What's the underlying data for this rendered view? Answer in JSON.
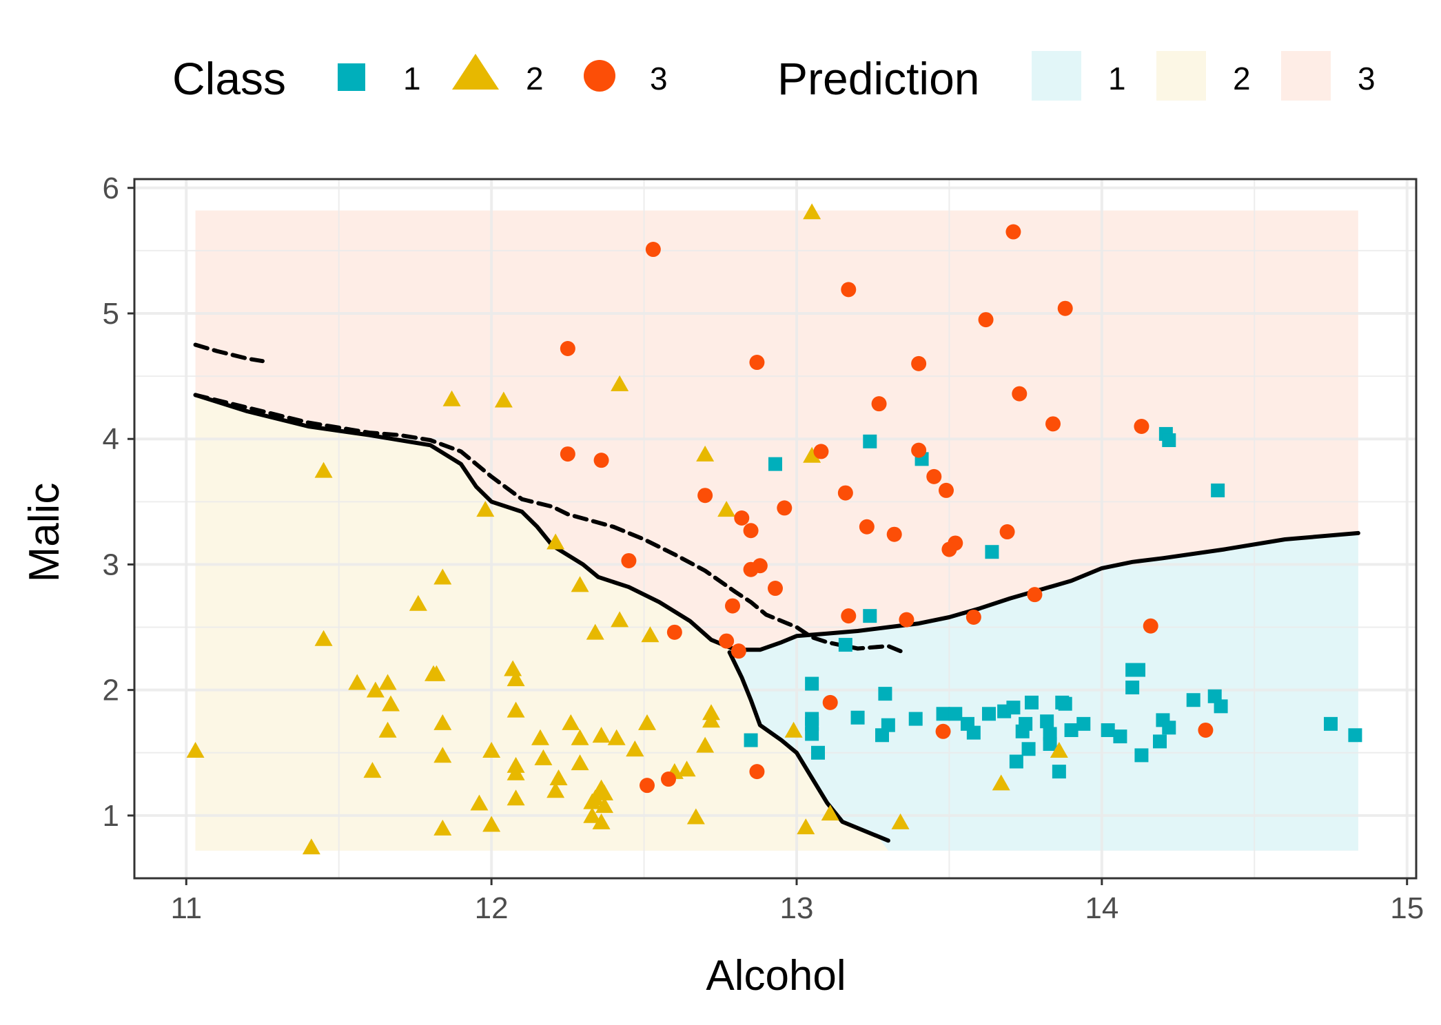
{
  "chart_data": {
    "type": "scatter",
    "xlabel": "Alcohol",
    "ylabel": "Malic",
    "xlim": [
      10.83,
      15.03
    ],
    "ylim": [
      0.5,
      6.07
    ],
    "x_ticks": [
      11,
      12,
      13,
      14,
      15
    ],
    "y_ticks": [
      1,
      2,
      3,
      4,
      5,
      6
    ],
    "x_tick_labels": [
      "11",
      "12",
      "13",
      "14",
      "15"
    ],
    "y_tick_labels": [
      "1",
      "2",
      "3",
      "4",
      "5",
      "6"
    ],
    "grid": true,
    "legend_position": "top",
    "legends": [
      {
        "title": "Class",
        "entries": [
          {
            "label": "1",
            "shape": "square",
            "color": "#00AFBB"
          },
          {
            "label": "2",
            "shape": "triangle",
            "color": "#E7B800"
          },
          {
            "label": "3",
            "shape": "circle",
            "color": "#FC4E07"
          }
        ]
      },
      {
        "title": "Prediction",
        "entries": [
          {
            "label": "1",
            "color": "#e2f6f8"
          },
          {
            "label": "2",
            "color": "#fcf7e5"
          },
          {
            "label": "3",
            "color": "#feede6"
          }
        ]
      }
    ],
    "prediction_region": {
      "x": [
        11.03,
        14.84
      ],
      "y": [
        0.72,
        5.82
      ]
    },
    "boundary_13": [
      [
        11.03,
        4.75
      ],
      [
        11.1,
        4.7
      ],
      [
        11.2,
        4.64
      ],
      [
        11.25,
        4.62
      ]
    ],
    "boundary_23": [
      [
        11.03,
        4.35
      ],
      [
        11.2,
        4.25
      ],
      [
        11.4,
        4.13
      ],
      [
        11.6,
        4.05
      ],
      [
        11.7,
        4.03
      ],
      [
        11.8,
        3.99
      ],
      [
        11.9,
        3.9
      ],
      [
        12.0,
        3.7
      ],
      [
        12.1,
        3.52
      ],
      [
        12.2,
        3.46
      ],
      [
        12.25,
        3.4
      ],
      [
        12.4,
        3.3
      ],
      [
        12.5,
        3.2
      ],
      [
        12.6,
        3.08
      ],
      [
        12.7,
        2.95
      ],
      [
        12.8,
        2.78
      ],
      [
        12.85,
        2.7
      ],
      [
        12.9,
        2.6
      ],
      [
        13.0,
        2.5
      ],
      [
        13.05,
        2.42
      ],
      [
        13.1,
        2.38
      ],
      [
        13.2,
        2.33
      ],
      [
        13.3,
        2.35
      ],
      [
        13.35,
        2.3
      ]
    ],
    "boundary_main": [
      [
        11.03,
        4.35
      ],
      [
        11.2,
        4.22
      ],
      [
        11.4,
        4.1
      ],
      [
        11.6,
        4.03
      ],
      [
        11.8,
        3.95
      ],
      [
        11.9,
        3.8
      ],
      [
        11.95,
        3.62
      ],
      [
        12.0,
        3.5
      ],
      [
        12.1,
        3.42
      ],
      [
        12.15,
        3.3
      ],
      [
        12.2,
        3.15
      ],
      [
        12.3,
        3.0
      ],
      [
        12.35,
        2.9
      ],
      [
        12.45,
        2.82
      ],
      [
        12.55,
        2.7
      ],
      [
        12.65,
        2.55
      ],
      [
        12.72,
        2.4
      ],
      [
        12.8,
        2.32
      ],
      [
        12.88,
        2.32
      ],
      [
        12.95,
        2.38
      ],
      [
        13.0,
        2.43
      ],
      [
        13.1,
        2.45
      ],
      [
        13.2,
        2.47
      ],
      [
        13.3,
        2.5
      ],
      [
        13.4,
        2.53
      ],
      [
        13.5,
        2.58
      ],
      [
        13.6,
        2.65
      ],
      [
        13.7,
        2.73
      ],
      [
        13.8,
        2.8
      ],
      [
        13.9,
        2.87
      ],
      [
        14.0,
        2.97
      ],
      [
        14.1,
        3.02
      ],
      [
        14.2,
        3.05
      ],
      [
        14.4,
        3.12
      ],
      [
        14.6,
        3.2
      ],
      [
        14.84,
        3.25
      ]
    ],
    "boundary_12": [
      [
        12.78,
        2.3
      ],
      [
        12.82,
        2.1
      ],
      [
        12.85,
        1.92
      ],
      [
        12.88,
        1.72
      ],
      [
        12.95,
        1.6
      ],
      [
        13.0,
        1.5
      ],
      [
        13.05,
        1.3
      ],
      [
        13.1,
        1.1
      ],
      [
        13.15,
        0.95
      ],
      [
        13.3,
        0.8
      ]
    ],
    "series": [
      {
        "name": "1",
        "points": [
          [
            13.24,
            3.98
          ],
          [
            13.41,
            3.84
          ],
          [
            12.93,
            3.8
          ],
          [
            14.21,
            4.04
          ],
          [
            14.22,
            3.99
          ],
          [
            14.38,
            3.59
          ],
          [
            13.64,
            3.1
          ],
          [
            13.24,
            2.59
          ],
          [
            13.16,
            2.36
          ],
          [
            13.05,
            2.05
          ],
          [
            13.05,
            1.77
          ],
          [
            13.05,
            1.73
          ],
          [
            13.05,
            1.65
          ],
          [
            13.07,
            1.5
          ],
          [
            12.85,
            1.6
          ],
          [
            13.2,
            1.78
          ],
          [
            13.29,
            1.97
          ],
          [
            13.28,
            1.64
          ],
          [
            13.3,
            1.72
          ],
          [
            13.39,
            1.77
          ],
          [
            13.48,
            1.81
          ],
          [
            13.52,
            1.81
          ],
          [
            13.56,
            1.73
          ],
          [
            13.58,
            1.66
          ],
          [
            13.63,
            1.81
          ],
          [
            13.68,
            1.83
          ],
          [
            13.71,
            1.86
          ],
          [
            13.72,
            1.43
          ],
          [
            13.74,
            1.67
          ],
          [
            13.75,
            1.73
          ],
          [
            13.76,
            1.53
          ],
          [
            13.77,
            1.9
          ],
          [
            13.82,
            1.75
          ],
          [
            13.83,
            1.65
          ],
          [
            13.83,
            1.57
          ],
          [
            13.86,
            1.35
          ],
          [
            13.87,
            1.9
          ],
          [
            13.88,
            1.89
          ],
          [
            13.9,
            1.68
          ],
          [
            13.94,
            1.73
          ],
          [
            14.02,
            1.68
          ],
          [
            14.06,
            1.63
          ],
          [
            14.1,
            2.16
          ],
          [
            14.12,
            2.16
          ],
          [
            14.1,
            2.02
          ],
          [
            14.13,
            1.48
          ],
          [
            14.19,
            1.59
          ],
          [
            14.2,
            1.76
          ],
          [
            14.22,
            1.7
          ],
          [
            14.3,
            1.92
          ],
          [
            14.37,
            1.95
          ],
          [
            14.39,
            1.87
          ],
          [
            14.75,
            1.73
          ],
          [
            14.83,
            1.64
          ]
        ]
      },
      {
        "name": "2",
        "points": [
          [
            13.05,
            5.8
          ],
          [
            12.42,
            4.43
          ],
          [
            11.87,
            4.31
          ],
          [
            12.04,
            4.3
          ],
          [
            12.7,
            3.87
          ],
          [
            13.05,
            3.86
          ],
          [
            11.45,
            3.74
          ],
          [
            12.77,
            3.43
          ],
          [
            11.98,
            3.43
          ],
          [
            12.21,
            3.17
          ],
          [
            12.29,
            2.83
          ],
          [
            11.84,
            2.89
          ],
          [
            11.76,
            2.68
          ],
          [
            12.42,
            2.55
          ],
          [
            12.34,
            2.45
          ],
          [
            12.52,
            2.43
          ],
          [
            11.45,
            2.4
          ],
          [
            11.81,
            2.12
          ],
          [
            11.82,
            2.12
          ],
          [
            12.07,
            2.16
          ],
          [
            12.08,
            2.08
          ],
          [
            11.56,
            2.05
          ],
          [
            11.66,
            2.05
          ],
          [
            11.62,
            1.99
          ],
          [
            11.67,
            1.88
          ],
          [
            12.08,
            1.83
          ],
          [
            11.66,
            1.67
          ],
          [
            11.84,
            1.73
          ],
          [
            12.16,
            1.61
          ],
          [
            12.26,
            1.73
          ],
          [
            12.29,
            1.61
          ],
          [
            12.36,
            1.63
          ],
          [
            12.41,
            1.61
          ],
          [
            12.47,
            1.52
          ],
          [
            12.51,
            1.73
          ],
          [
            12.7,
            1.55
          ],
          [
            12.72,
            1.81
          ],
          [
            12.72,
            1.75
          ],
          [
            12.99,
            1.67
          ],
          [
            12.47,
            1.52
          ],
          [
            11.03,
            1.51
          ],
          [
            11.61,
            1.35
          ],
          [
            11.84,
            1.47
          ],
          [
            12.0,
            1.51
          ],
          [
            12.08,
            1.39
          ],
          [
            12.08,
            1.33
          ],
          [
            12.17,
            1.45
          ],
          [
            12.29,
            1.41
          ],
          [
            12.21,
            1.19
          ],
          [
            12.22,
            1.29
          ],
          [
            11.96,
            1.09
          ],
          [
            12.08,
            1.13
          ],
          [
            12.33,
            1.1
          ],
          [
            12.34,
            1.13
          ],
          [
            12.36,
            1.21
          ],
          [
            12.37,
            1.17
          ],
          [
            12.37,
            1.07
          ],
          [
            12.6,
            1.34
          ],
          [
            12.64,
            1.36
          ],
          [
            12.67,
            0.98
          ],
          [
            12.33,
            0.99
          ],
          [
            12.36,
            0.94
          ],
          [
            11.84,
            0.89
          ],
          [
            12.0,
            0.92
          ],
          [
            11.41,
            0.74
          ],
          [
            13.03,
            0.9
          ],
          [
            13.11,
            1.01
          ],
          [
            13.34,
            0.94
          ],
          [
            13.67,
            1.25
          ],
          [
            13.86,
            1.51
          ]
        ]
      },
      {
        "name": "3",
        "points": [
          [
            12.53,
            5.51
          ],
          [
            13.71,
            5.65
          ],
          [
            13.17,
            5.19
          ],
          [
            13.88,
            5.04
          ],
          [
            13.62,
            4.95
          ],
          [
            12.25,
            4.72
          ],
          [
            12.87,
            4.61
          ],
          [
            13.4,
            4.6
          ],
          [
            13.73,
            4.36
          ],
          [
            13.27,
            4.28
          ],
          [
            13.84,
            4.12
          ],
          [
            14.13,
            4.1
          ],
          [
            13.08,
            3.9
          ],
          [
            13.4,
            3.91
          ],
          [
            12.25,
            3.88
          ],
          [
            12.36,
            3.83
          ],
          [
            13.45,
            3.7
          ],
          [
            13.49,
            3.59
          ],
          [
            13.16,
            3.57
          ],
          [
            12.7,
            3.55
          ],
          [
            12.96,
            3.45
          ],
          [
            12.82,
            3.37
          ],
          [
            12.85,
            3.27
          ],
          [
            13.23,
            3.3
          ],
          [
            13.32,
            3.24
          ],
          [
            13.69,
            3.26
          ],
          [
            13.52,
            3.17
          ],
          [
            13.5,
            3.12
          ],
          [
            12.45,
            3.03
          ],
          [
            12.88,
            2.99
          ],
          [
            12.85,
            2.96
          ],
          [
            12.93,
            2.81
          ],
          [
            13.78,
            2.76
          ],
          [
            12.79,
            2.67
          ],
          [
            13.17,
            2.59
          ],
          [
            13.36,
            2.56
          ],
          [
            13.58,
            2.58
          ],
          [
            14.16,
            2.51
          ],
          [
            12.6,
            2.46
          ],
          [
            12.77,
            2.39
          ],
          [
            12.81,
            2.31
          ],
          [
            13.11,
            1.9
          ],
          [
            13.48,
            1.67
          ],
          [
            14.34,
            1.68
          ],
          [
            12.87,
            1.35
          ],
          [
            12.51,
            1.24
          ],
          [
            12.58,
            1.29
          ]
        ]
      }
    ]
  }
}
